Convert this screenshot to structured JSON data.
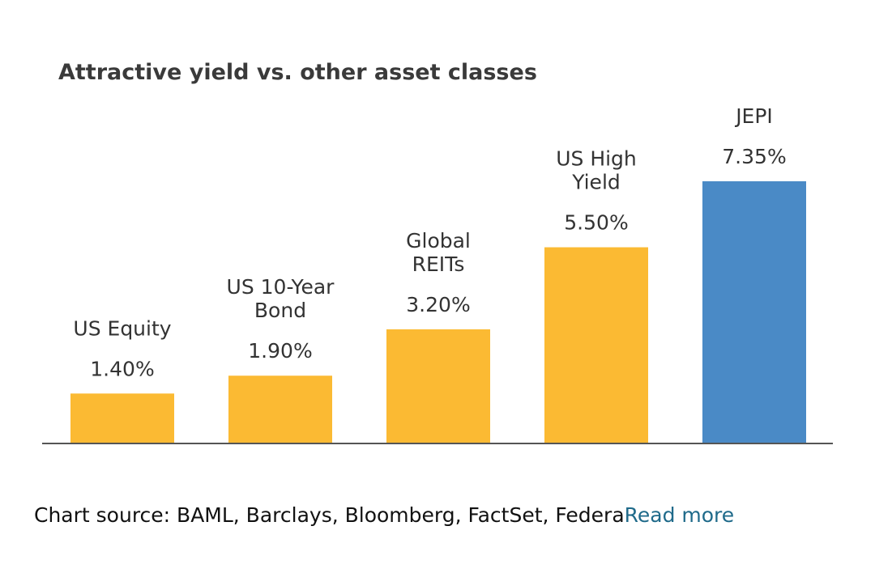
{
  "chart_data": {
    "type": "bar",
    "title": "Attractive yield vs. other asset classes",
    "categories": [
      "US Equity",
      "US 10-Year Bond",
      "Global REITs",
      "US High Yield",
      "JEPI"
    ],
    "category_lines": [
      [
        "US Equity"
      ],
      [
        "US 10-Year",
        "Bond"
      ],
      [
        "Global",
        "REITs"
      ],
      [
        "US High",
        "Yield"
      ],
      [
        "JEPI"
      ]
    ],
    "values": [
      1.4,
      1.9,
      3.2,
      5.5,
      7.35
    ],
    "value_labels": [
      "1.40%",
      "1.90%",
      "3.20%",
      "5.50%",
      "7.35%"
    ],
    "colors": [
      "#FBBA33",
      "#FBBA33",
      "#FBBA33",
      "#FBBA33",
      "#4A8AC6"
    ],
    "xlabel": "",
    "ylabel": "",
    "ylim": [
      0,
      7.35
    ],
    "grid": false,
    "legend": "none"
  },
  "footer": {
    "source_text": "Chart source: BAML, Barclays, Bloomberg, FactSet, Federa",
    "read_more": "Read more"
  }
}
